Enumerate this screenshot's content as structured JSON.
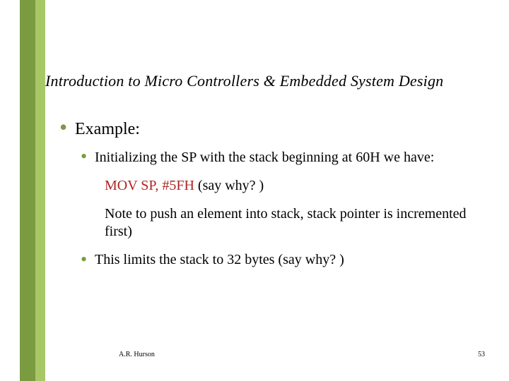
{
  "accent": {
    "dark": "#7a9b3f",
    "light": "#a8c867"
  },
  "title": "Introduction to Micro Controllers & Embedded System Design",
  "bullets": {
    "level1": {
      "text": "Example:"
    },
    "level2a": {
      "text": "Initializing the SP with the stack beginning at 60H we have:"
    },
    "code": {
      "red": "MOV   SP, #5FH",
      "black": "  (say why? )"
    },
    "note": "Note to push an element   into stack, stack pointer is incremented first)",
    "level2b": {
      "text": "This limits the stack to 32 bytes (say why? )"
    }
  },
  "footer": {
    "author": "A.R. Hurson",
    "page": "53"
  }
}
